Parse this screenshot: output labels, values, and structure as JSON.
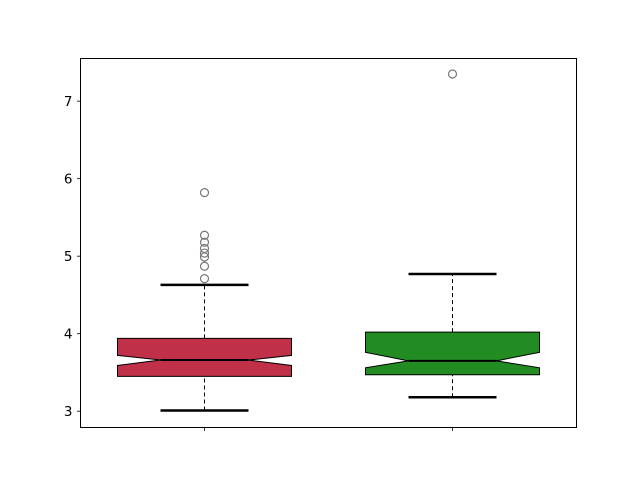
{
  "chart_data": {
    "type": "boxplot",
    "notched": true,
    "title": "",
    "xlabel": "",
    "ylabel": "",
    "xlim": [
      0.5,
      2.5
    ],
    "ylim": [
      2.79,
      7.55
    ],
    "yticks": [
      3,
      4,
      5,
      6,
      7
    ],
    "ytick_labels": [
      "3",
      "4",
      "5",
      "6",
      "7"
    ],
    "xtick_labels": [
      "",
      ""
    ],
    "grid": false,
    "boxes": [
      {
        "position": 1,
        "color": "#c03048",
        "whisker_low": 3.01,
        "q1": 3.45,
        "notch_low": 3.59,
        "median": 3.66,
        "notch_high": 3.72,
        "q3": 3.94,
        "whisker_high": 4.63,
        "outliers": [
          4.71,
          4.87,
          4.99,
          5.04,
          5.1,
          5.18,
          5.27,
          5.82
        ]
      },
      {
        "position": 2,
        "color": "#228b22",
        "whisker_low": 3.18,
        "q1": 3.47,
        "notch_low": 3.56,
        "median": 3.65,
        "notch_high": 3.76,
        "q3": 4.02,
        "whisker_high": 4.77,
        "outliers": [
          7.35
        ]
      }
    ]
  }
}
